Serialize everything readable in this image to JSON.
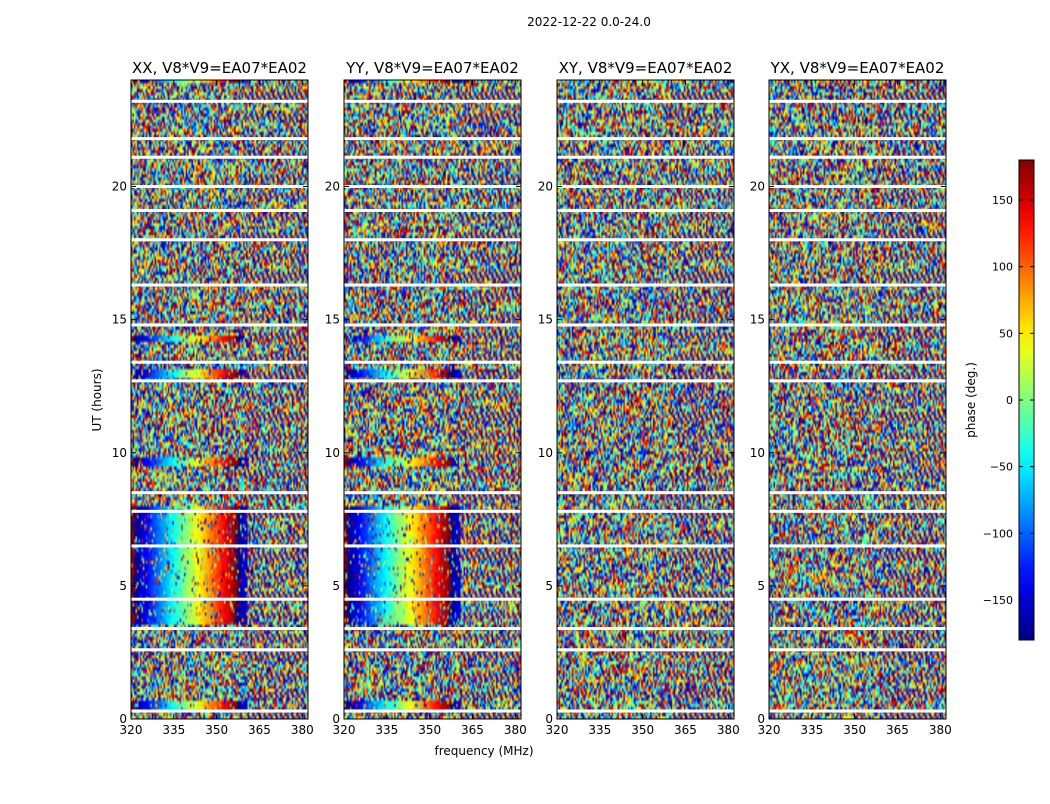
{
  "suptitle": "2022-12-22 0.0-24.0",
  "chart_data": {
    "type": "heatmap",
    "description_free": true,
    "xlabel": "frequency (MHz)",
    "ylabel": "UT (hours)",
    "xlim": [
      320,
      382
    ],
    "ylim": [
      0,
      24
    ],
    "xticks": [
      320,
      335,
      350,
      365,
      380
    ],
    "yticks": [
      0,
      5,
      10,
      15,
      20
    ],
    "panels": [
      {
        "title": "XX, V8*V9=EA07*EA02",
        "pol": "XX",
        "gradient": true
      },
      {
        "title": "YY, V8*V9=EA07*EA02",
        "pol": "YY",
        "gradient": true
      },
      {
        "title": "XY, V8*V9=EA07*EA02",
        "pol": "XY",
        "gradient": false
      },
      {
        "title": "YX, V8*V9=EA07*EA02",
        "pol": "YX",
        "gradient": false
      }
    ],
    "colorbar": {
      "label": "phase (deg.)",
      "range": [
        -180,
        180
      ],
      "ticks": [
        150,
        100,
        50,
        0,
        -50,
        -100,
        -150
      ],
      "tick_labels": [
        "150",
        "100",
        "50",
        "0",
        "−50",
        "−100",
        "−150"
      ],
      "cmap": "jet"
    },
    "gap_hours": [
      0.3,
      2.6,
      3.4,
      4.5,
      6.5,
      7.8,
      8.5,
      12.7,
      13.4,
      14.8,
      16.3,
      18.0,
      19.1,
      20.0,
      21.1,
      21.8,
      23.2
    ],
    "coherent_bands": [
      {
        "t0": 0.4,
        "t1": 0.65,
        "panels": [
          0,
          1
        ]
      },
      {
        "t0": 3.6,
        "t1": 8.0,
        "panels": [
          0,
          1
        ]
      },
      {
        "t0": 9.5,
        "t1": 9.8,
        "panels": [
          0,
          1
        ]
      },
      {
        "t0": 12.8,
        "t1": 13.1,
        "panels": [
          0,
          1
        ]
      },
      {
        "t0": 14.2,
        "t1": 14.45,
        "panels": [
          0,
          1
        ]
      },
      {
        "t0": 23.9,
        "t1": 24.0,
        "panels": [
          0,
          1
        ]
      }
    ]
  }
}
